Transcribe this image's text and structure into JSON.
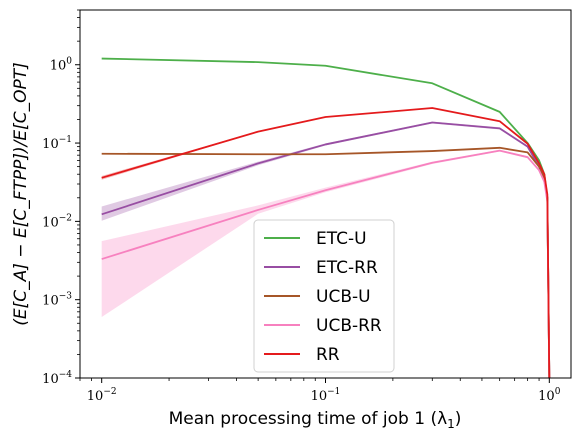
{
  "chart_data": {
    "type": "line",
    "title": "",
    "xlabel": "Mean processing time of job 1 (λ",
    "xlabel_sub": "1",
    "xlabel_end": ")",
    "ylabel": "(E[C_A] − E[C_FTPP])/E[C_OPT]",
    "x_scale": "log",
    "y_scale": "log",
    "xlim": [
      0.008,
      1.25
    ],
    "ylim": [
      0.0001,
      5
    ],
    "x_ticks": [
      {
        "value": 0.01,
        "base": "10",
        "exp": "−2"
      },
      {
        "value": 0.1,
        "base": "10",
        "exp": "−1"
      },
      {
        "value": 1,
        "base": "10",
        "exp": "0"
      }
    ],
    "y_ticks": [
      {
        "value": 0.0001,
        "base": "10",
        "exp": "−4"
      },
      {
        "value": 0.001,
        "base": "10",
        "exp": "−3"
      },
      {
        "value": 0.01,
        "base": "10",
        "exp": "−2"
      },
      {
        "value": 0.1,
        "base": "10",
        "exp": "−1"
      },
      {
        "value": 1,
        "base": "10",
        "exp": "0"
      }
    ],
    "grid": false,
    "legend_position": "lower-center",
    "series": [
      {
        "name": "ETC-U",
        "color": "#4daf4a",
        "x": [
          0.01,
          0.05,
          0.1,
          0.3,
          0.6,
          0.8,
          0.9,
          0.95,
          0.98,
          1.0
        ],
        "y": [
          1.2,
          1.08,
          0.97,
          0.58,
          0.25,
          0.1,
          0.06,
          0.04,
          0.02,
          0.0001
        ],
        "lower": null,
        "upper": null
      },
      {
        "name": "ETC-RR",
        "color": "#984ea3",
        "x": [
          0.01,
          0.05,
          0.1,
          0.3,
          0.6,
          0.8,
          0.9,
          0.95,
          0.98,
          1.0
        ],
        "y": [
          0.0123,
          0.055,
          0.096,
          0.183,
          0.154,
          0.09,
          0.05,
          0.035,
          0.02,
          0.0001
        ],
        "lower": [
          0.0102,
          0.052,
          0.093,
          0.178,
          0.149,
          0.087,
          0.048,
          0.033,
          0.019,
          0.0001
        ],
        "upper": [
          0.0155,
          0.058,
          0.099,
          0.188,
          0.159,
          0.093,
          0.052,
          0.037,
          0.021,
          0.0001
        ]
      },
      {
        "name": "UCB-U",
        "color": "#a65628",
        "x": [
          0.01,
          0.05,
          0.1,
          0.3,
          0.6,
          0.8,
          0.9,
          0.95,
          0.98,
          1.0
        ],
        "y": [
          0.073,
          0.072,
          0.072,
          0.079,
          0.087,
          0.076,
          0.05,
          0.035,
          0.02,
          0.0001
        ],
        "lower": null,
        "upper": null
      },
      {
        "name": "UCB-RR",
        "color": "#f781bf",
        "x": [
          0.01,
          0.05,
          0.1,
          0.3,
          0.6,
          0.8,
          0.9,
          0.95,
          0.98,
          1.0
        ],
        "y": [
          0.0033,
          0.014,
          0.025,
          0.056,
          0.08,
          0.066,
          0.045,
          0.032,
          0.018,
          0.0001
        ],
        "lower": [
          0.0006,
          0.0125,
          0.0235,
          0.054,
          0.078,
          0.064,
          0.044,
          0.031,
          0.017,
          0.0001
        ],
        "upper": [
          0.0056,
          0.016,
          0.027,
          0.058,
          0.082,
          0.068,
          0.046,
          0.033,
          0.019,
          0.0001
        ]
      },
      {
        "name": "RR",
        "color": "#e41a1c",
        "x": [
          0.01,
          0.05,
          0.1,
          0.3,
          0.6,
          0.8,
          0.9,
          0.95,
          0.98,
          1.0
        ],
        "y": [
          0.036,
          0.14,
          0.215,
          0.28,
          0.19,
          0.098,
          0.055,
          0.04,
          0.022,
          0.0001
        ],
        "lower": [
          0.034,
          0.138,
          0.212,
          0.276,
          0.187,
          0.096,
          0.054,
          0.039,
          0.021,
          0.0001
        ],
        "upper": [
          0.038,
          0.142,
          0.218,
          0.284,
          0.193,
          0.1,
          0.056,
          0.041,
          0.023,
          0.0001
        ]
      }
    ]
  }
}
